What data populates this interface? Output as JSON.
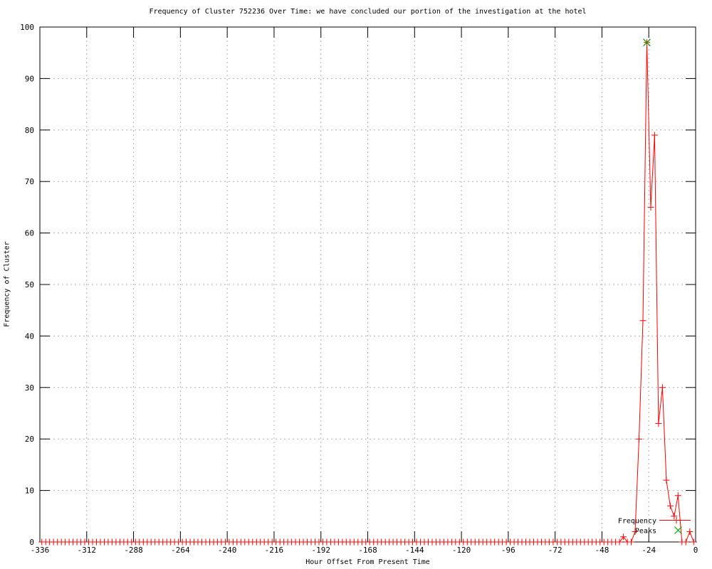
{
  "chart_data": {
    "type": "line",
    "title": "Frequency of Cluster 752236 Over Time: we have concluded our portion of the investigation at the hotel",
    "xlabel": "Hour Offset From Present Time",
    "ylabel": "Frequency of Cluster",
    "xlim": [
      -336,
      0
    ],
    "ylim": [
      0,
      100
    ],
    "xticks": [
      -336,
      -312,
      -288,
      -264,
      -240,
      -216,
      -192,
      -168,
      -144,
      -120,
      -96,
      -72,
      -48,
      -24,
      0
    ],
    "yticks": [
      0,
      10,
      20,
      30,
      40,
      50,
      60,
      70,
      80,
      90,
      100
    ],
    "grid": true,
    "legend_position": "bottom-right",
    "series": [
      {
        "name": "Frequency",
        "color": "#ff0000",
        "marker": "plus",
        "style": "line-with-points",
        "x_start": -335,
        "x_end": -1,
        "x_step": 2,
        "default_value": 0,
        "nonzero_points": {
          "-37": 1,
          "-31": 2,
          "-29": 20,
          "-27": 43,
          "-25": 97,
          "-23": 65,
          "-21": 79,
          "-19": 23,
          "-17": 30,
          "-15": 12,
          "-13": 7,
          "-11": 5,
          "-9": 9,
          "-3": 2
        }
      },
      {
        "name": "Peaks",
        "color": "#00a000",
        "marker": "x",
        "style": "points-only",
        "points": [
          [
            -25,
            97
          ]
        ]
      }
    ]
  },
  "colors": {
    "background": "#ffffff",
    "border": "#000000",
    "grid": "#b0b0b0",
    "text": "#000000"
  }
}
